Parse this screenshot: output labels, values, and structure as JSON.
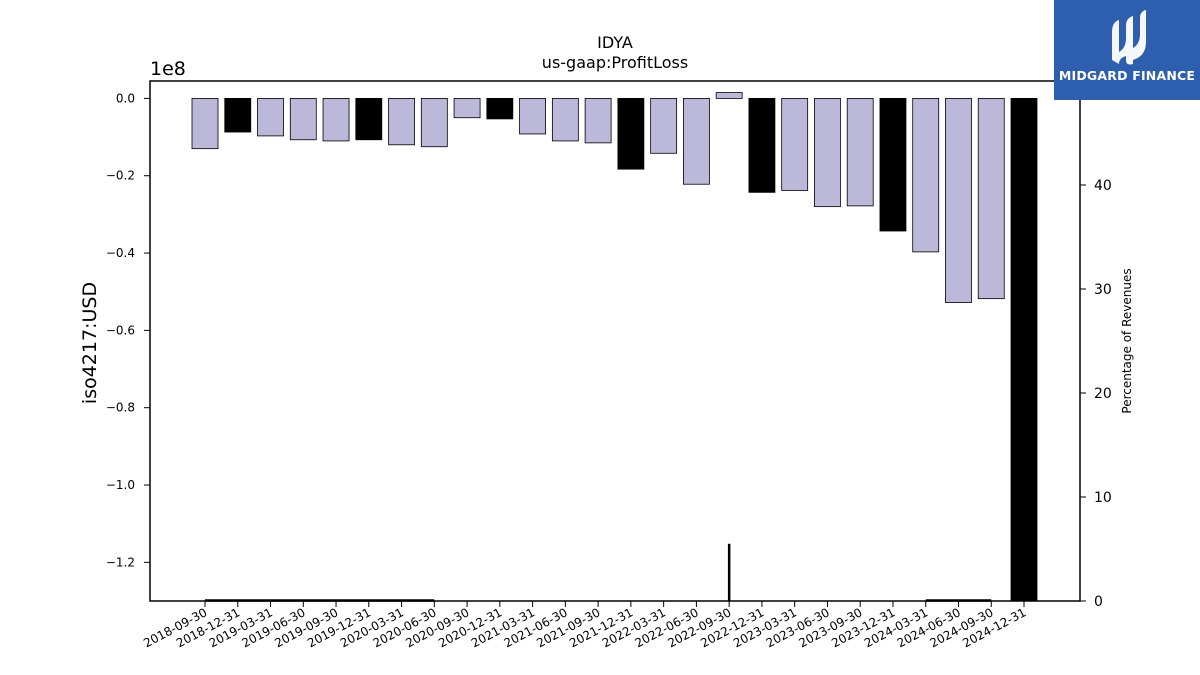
{
  "brand": {
    "name": "MIDGARD FINANCE",
    "icon": "midgard-logo-icon",
    "color": "#2d5fae"
  },
  "chart_data": {
    "type": "bar",
    "title": "IDYA",
    "subtitle": "us-gaap:ProfitLoss",
    "ylabel": "iso4217:USD",
    "y2label": "Percentage of Revenues",
    "y_offset_label": "1e8",
    "ylim": [
      -1.3,
      0.045
    ],
    "y2lim": [
      0,
      50
    ],
    "yticks": [
      0.0,
      -0.2,
      -0.4,
      -0.6,
      -0.8,
      -1.0,
      -1.2
    ],
    "ytick_labels": [
      "0.0",
      "−0.2",
      "−0.4",
      "−0.6",
      "−0.8",
      "−1.0",
      "−1.2"
    ],
    "y2ticks": [
      0,
      10,
      20,
      30,
      40
    ],
    "categories": [
      "2018-09-30",
      "2018-12-31",
      "2019-03-31",
      "2019-06-30",
      "2019-09-30",
      "2019-12-31",
      "2020-03-31",
      "2020-06-30",
      "2020-09-30",
      "2020-12-31",
      "2021-03-31",
      "2021-06-30",
      "2021-09-30",
      "2021-12-31",
      "2022-03-31",
      "2022-06-30",
      "2022-09-30",
      "2022-12-31",
      "2023-03-31",
      "2023-06-30",
      "2023-09-30",
      "2023-12-31",
      "2024-03-31",
      "2024-06-30",
      "2024-09-30",
      "2024-12-31"
    ],
    "values": [
      -0.13,
      -0.087,
      -0.097,
      -0.107,
      -0.11,
      -0.107,
      -0.12,
      -0.125,
      -0.05,
      -0.053,
      -0.092,
      -0.11,
      -0.115,
      -0.183,
      -0.142,
      -0.222,
      0.015,
      -0.243,
      -0.238,
      -0.28,
      -0.278,
      -0.343,
      -0.397,
      -0.528,
      -0.518,
      -1.3
    ],
    "bar_types": [
      "q",
      "y",
      "q",
      "q",
      "q",
      "y",
      "q",
      "q",
      "q",
      "y",
      "q",
      "q",
      "q",
      "y",
      "q",
      "q",
      "q",
      "y",
      "q",
      "q",
      "q",
      "y",
      "q",
      "q",
      "q",
      "y"
    ],
    "percentage_of_revenues": [
      0.05,
      0.05,
      0.05,
      0.05,
      0.05,
      0.05,
      0.05,
      0.05,
      null,
      null,
      null,
      null,
      null,
      null,
      null,
      null,
      5.5,
      null,
      null,
      null,
      null,
      null,
      0.05,
      0.05,
      0.05,
      null
    ],
    "colors": {
      "quarterly": "#bcb8da",
      "annual": "#000000",
      "edge": "#000000",
      "line": "#000000"
    },
    "grid": false
  }
}
